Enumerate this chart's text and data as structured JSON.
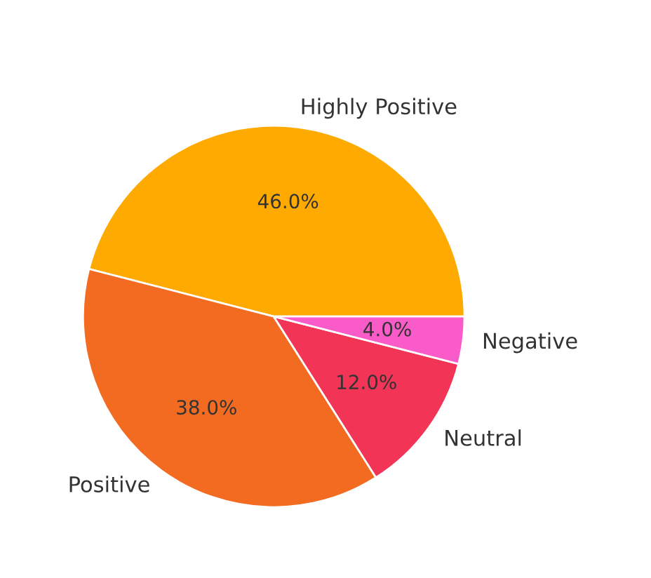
{
  "chart_data": {
    "type": "pie",
    "categories": [
      "Highly Positive",
      "Positive",
      "Neutral",
      "Negative"
    ],
    "values": [
      46,
      38,
      12,
      4
    ],
    "value_labels": [
      "46.0%",
      "38.0%",
      "12.0%",
      "4.0%"
    ],
    "colors": [
      "#ffaa00",
      "#f26b21",
      "#f23557",
      "#f95cc8"
    ]
  }
}
